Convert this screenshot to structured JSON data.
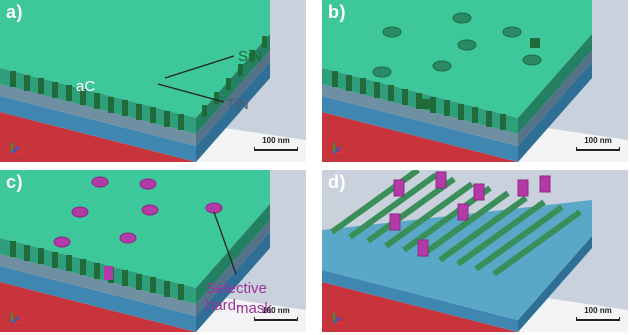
{
  "panels": [
    {
      "label": "a)"
    },
    {
      "label": "b)"
    },
    {
      "label": "c)"
    },
    {
      "label": "d)"
    }
  ],
  "scale_bar": "100 nm",
  "annotations": {
    "ac": "aC",
    "sin": "SiN",
    "tin": "TiN",
    "hardmask_line1": "Selective hard-",
    "hardmask_line2": "mask"
  },
  "colors": {
    "ac_top": "#3ec79a",
    "ac_front": "#2f9e7a",
    "sin": "#1f6b3a",
    "tin": "#6f8fa3",
    "blue_layer": "#3f86b0",
    "substrate": "#c8343c",
    "hardmask": "#b43aa8",
    "label_sin": "#1f6b3a",
    "label_tin": "#4a6070",
    "label_hardmask": "#a0309a"
  }
}
